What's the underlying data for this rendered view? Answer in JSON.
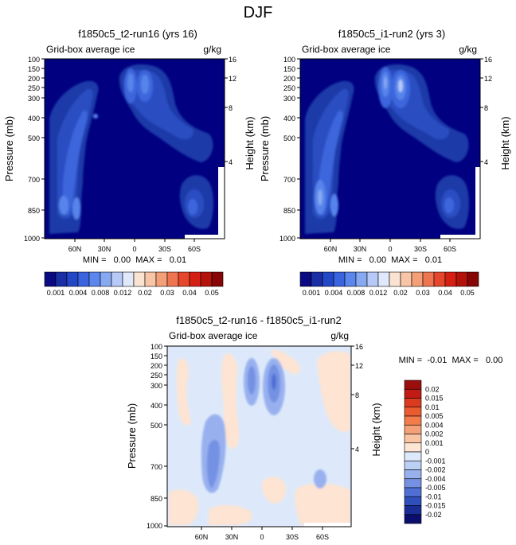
{
  "page_title": "DJF",
  "colors": {
    "background": "#000080",
    "frame": "#000000"
  },
  "chart_data": [
    {
      "type": "heatmap",
      "title": "f1850c5_t2-run16 (yrs 16)",
      "subtitle_left": "Grid-box average ice",
      "subtitle_right": "g/kg",
      "ylabel": "Pressure (mb)",
      "ylabel_right": "Height (km)",
      "x_ticks": [
        "60N",
        "30N",
        "0",
        "30S",
        "60S"
      ],
      "y_ticks": [
        "100",
        "150",
        "200",
        "250",
        "300",
        "400",
        "500",
        "700",
        "850",
        "1000"
      ],
      "y_ticks_right": [
        "16",
        "12",
        "8",
        "4"
      ],
      "stats": "MIN =   0.00  MAX =   0.01",
      "legend_labels": [
        "0.001",
        "0.004",
        "0.008",
        "0.012",
        "0.02",
        "0.03",
        "0.04",
        "0.05"
      ],
      "legend_colors": [
        "#0a0a82",
        "#1a2ea6",
        "#2348c7",
        "#3a63e0",
        "#5b86ec",
        "#87a9f2",
        "#b7c9f7",
        "#e0e9fb",
        "#fbe3d2",
        "#f8c5a6",
        "#f3a079",
        "#ee7550",
        "#e6462b",
        "#d61f13",
        "#b4110b",
        "#870505"
      ]
    },
    {
      "type": "heatmap",
      "title": "f1850c5_i1-run2 (yrs 3)",
      "subtitle_left": "Grid-box average ice",
      "subtitle_right": "g/kg",
      "ylabel": "Pressure (mb)",
      "ylabel_right": "Height (km)",
      "x_ticks": [
        "60N",
        "30N",
        "0",
        "30S",
        "60S"
      ],
      "y_ticks": [
        "100",
        "150",
        "200",
        "250",
        "300",
        "400",
        "500",
        "700",
        "850",
        "1000"
      ],
      "y_ticks_right": [
        "16",
        "12",
        "8",
        "4"
      ],
      "stats": "MIN =   0.00  MAX =   0.01",
      "legend_labels": [
        "0.001",
        "0.004",
        "0.008",
        "0.012",
        "0.02",
        "0.03",
        "0.04",
        "0.05"
      ],
      "legend_colors": [
        "#0a0a82",
        "#1a2ea6",
        "#2348c7",
        "#3a63e0",
        "#5b86ec",
        "#87a9f2",
        "#b7c9f7",
        "#e0e9fb",
        "#fbe3d2",
        "#f8c5a6",
        "#f3a079",
        "#ee7550",
        "#e6462b",
        "#d61f13",
        "#b4110b",
        "#870505"
      ]
    },
    {
      "type": "heatmap",
      "title": "f1850c5_t2-run16 - f1850c5_i1-run2",
      "subtitle_left": "Grid-box average ice",
      "subtitle_right": "g/kg",
      "ylabel": "Pressure (mb)",
      "ylabel_right": "Height (km)",
      "x_ticks": [
        "60N",
        "30N",
        "0",
        "30S",
        "60S"
      ],
      "y_ticks": [
        "100",
        "150",
        "200",
        "250",
        "300",
        "400",
        "500",
        "700",
        "850",
        "1000"
      ],
      "y_ticks_right": [
        "16",
        "12",
        "8",
        "4"
      ],
      "stats": "MIN =  -0.01  MAX =   0.00",
      "legend_labels": [
        "0.02",
        "0.015",
        "0.01",
        "0.005",
        "0.004",
        "0.002",
        "0.001",
        "0",
        "-0.001",
        "-0.002",
        "-0.004",
        "-0.005",
        "-0.01",
        "-0.015",
        "-0.02"
      ],
      "legend_colors": [
        "#9b0e0e",
        "#c21a14",
        "#dc3a20",
        "#ea5b30",
        "#f27c4c",
        "#f6a077",
        "#f9c4a4",
        "#fde4d3",
        "#dde9fb",
        "#bcd0f6",
        "#98b1ee",
        "#7491e4",
        "#4f6fd5",
        "#2f4fbd",
        "#1a2c96",
        "#0a0f6d"
      ]
    }
  ]
}
